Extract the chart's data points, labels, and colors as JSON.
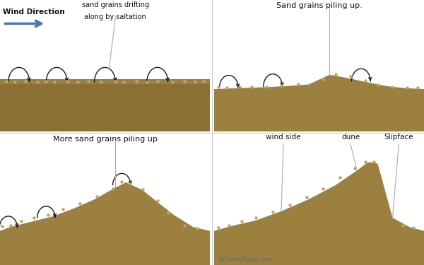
{
  "bg_color": "#ffffff",
  "sand_dark": "#8B7035",
  "sand_mid": "#9B8040",
  "sand_surface": "#B09848",
  "dot_color": "#C4A84A",
  "line_color": "#aaaaaa",
  "arrow_color": "#1a1a1a",
  "wind_arrow_color": "#4a7aaa",
  "text_color": "#111111",
  "label_color": "#666666",
  "divider_color": "#cccccc",
  "panel1_title_line1": "sand grains drifting",
  "panel1_title_line2": "along by saltation",
  "panel1_wind": "Wind Direction",
  "panel2_title": "Sand grains piling up.",
  "panel3_title": "More sand grains piling up",
  "panel4_labels": [
    "wind side",
    "dune",
    "Slipface"
  ],
  "panel4_credit": "©Eschooltoday.com"
}
